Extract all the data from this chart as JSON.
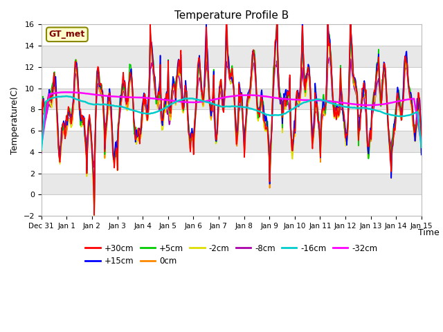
{
  "title": "Temperature Profile B",
  "xlabel": "Time",
  "ylabel": "Temperature(C)",
  "ylim": [
    -2,
    16
  ],
  "background_color": "#ffffff",
  "plot_bg_color": "#f0f0f0",
  "grid_color": "#ffffff",
  "series_colors": {
    "+30cm": "#ff0000",
    "+15cm": "#0000ff",
    "+5cm": "#00cc00",
    "0cm": "#ff8800",
    "-2cm": "#dddd00",
    "-8cm": "#aa00aa",
    "-16cm": "#00cccc",
    "-32cm": "#ff00ff"
  },
  "gt_met_label": "GT_met",
  "gt_met_bg": "#ffffcc",
  "gt_met_border": "#888800",
  "xtick_labels": [
    "Dec 31",
    "Jan 1",
    "Jan 2",
    "Jan 3",
    "Jan 4",
    "Jan 5",
    "Jan 6",
    "Jan 7",
    "Jan 8",
    "Jan 9",
    "Jan 10",
    "Jan 11",
    "Jan 12",
    "Jan 13",
    "Jan 14",
    "Jan 15"
  ],
  "n_points_per_day": 48,
  "n_days": 15
}
